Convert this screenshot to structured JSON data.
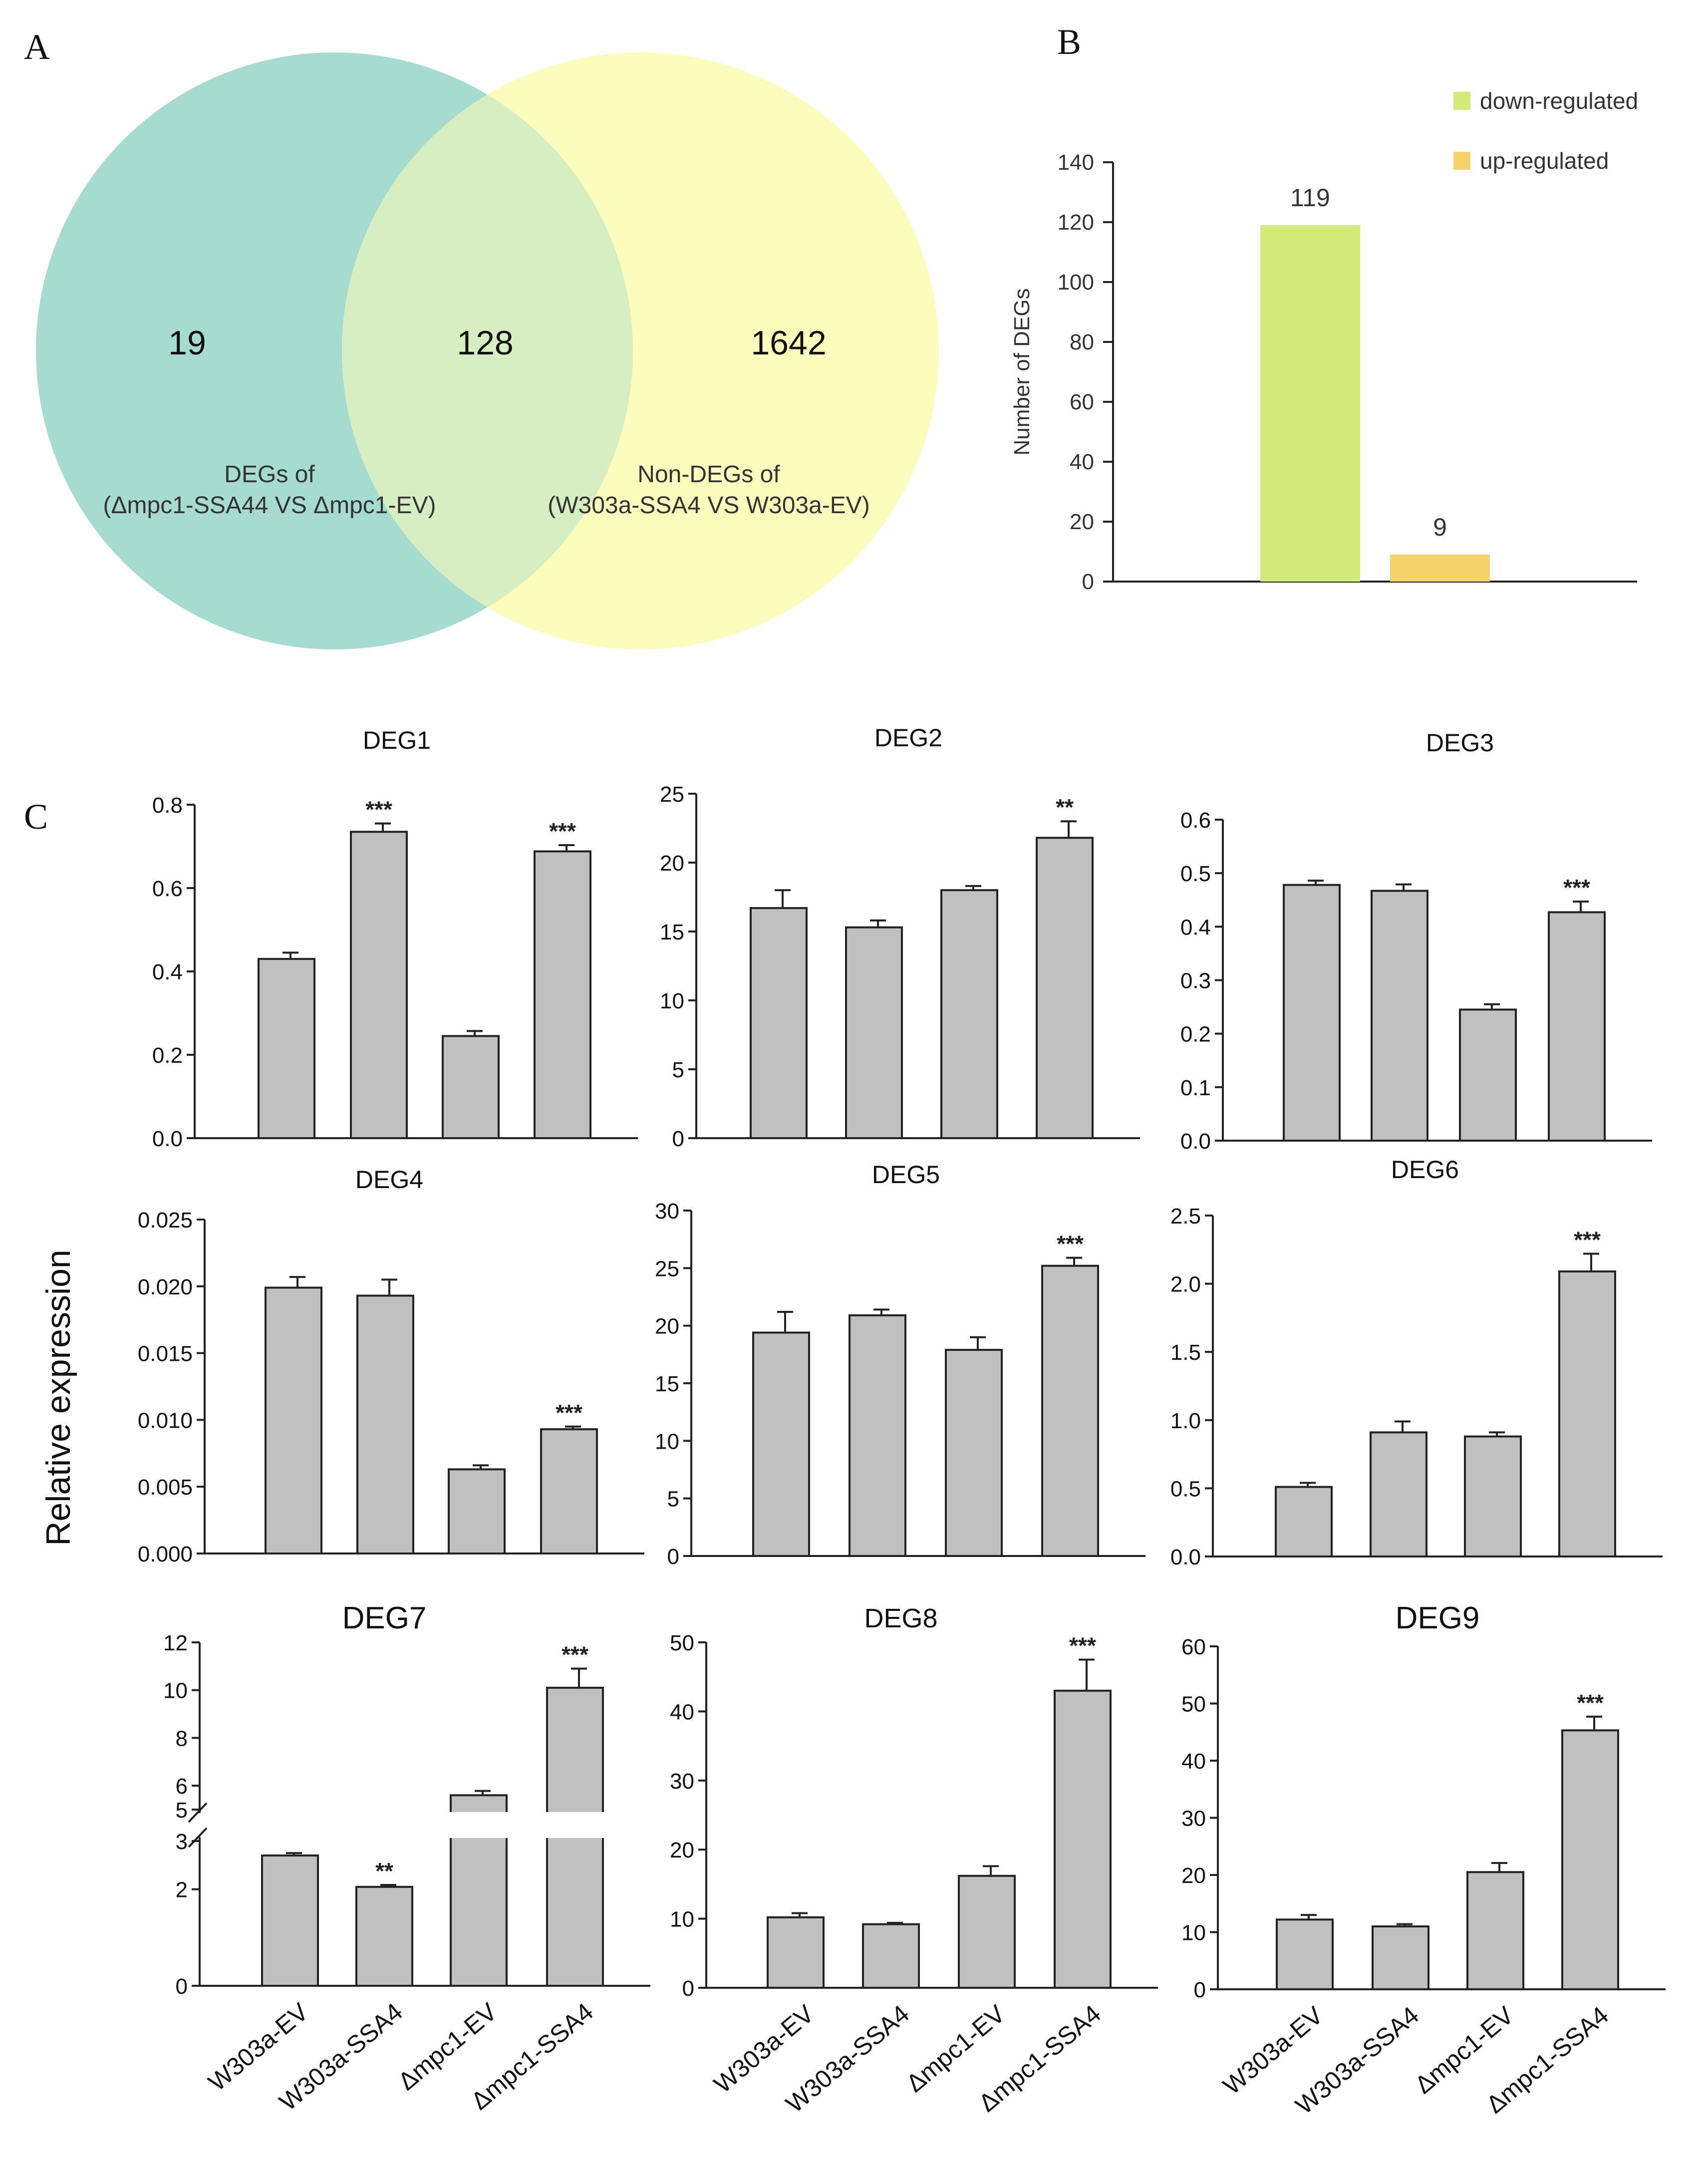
{
  "panel_labels": {
    "a": "A",
    "b": "B",
    "c": "C"
  },
  "venn": {
    "left_only": "19",
    "overlap": "128",
    "right_only": "1642",
    "left_label_line1": "DEGs of",
    "left_label_line2": "(Δmpc1-SSA44 VS Δmpc1-EV)",
    "right_label_line1": "Non-DEGs of",
    "right_label_line2": "(W303a-SSA4 VS W303a-EV)",
    "left_color": "#a6dccf",
    "right_color": "#fcfcbd",
    "overlap_color": "#d6eec1"
  },
  "shared_ylabel": "Relative  expression",
  "chart_data": [
    {
      "id": "b",
      "type": "bar",
      "ylabel": "Number of DEGs",
      "ylim": [
        0,
        140
      ],
      "yticks": [
        0,
        20,
        40,
        60,
        80,
        100,
        120,
        140
      ],
      "legend_position": "top-right",
      "series": [
        {
          "name": "down-regulated",
          "value": 119,
          "color": "#d3ea7b"
        },
        {
          "name": "up-regulated",
          "value": 9,
          "color": "#f5d36a"
        }
      ]
    },
    {
      "id": "deg1",
      "type": "bar",
      "title": "DEG1",
      "categories": [
        "W303a-EV",
        "W303a-SSA4",
        "Δmpc1-EV",
        "Δmpc1-SSA4"
      ],
      "values": [
        0.43,
        0.735,
        0.245,
        0.688
      ],
      "errors": [
        0.015,
        0.02,
        0.012,
        0.015
      ],
      "significance": [
        "",
        "***",
        "",
        "***"
      ],
      "ylim": [
        0,
        0.8
      ],
      "yticks": [
        "0.0",
        "0.2",
        "0.4",
        "0.6",
        "0.8"
      ]
    },
    {
      "id": "deg2",
      "type": "bar",
      "title": "DEG2",
      "categories": [
        "W303a-EV",
        "W303a-SSA4",
        "Δmpc1-EV",
        "Δmpc1-SSA4"
      ],
      "values": [
        16.7,
        15.3,
        18.0,
        21.8
      ],
      "errors": [
        1.3,
        0.5,
        0.3,
        1.2
      ],
      "significance": [
        "",
        "",
        "",
        "**"
      ],
      "ylim": [
        0,
        25
      ],
      "yticks": [
        "0",
        "5",
        "10",
        "15",
        "20",
        "25"
      ]
    },
    {
      "id": "deg3",
      "type": "bar",
      "title": "DEG3",
      "categories": [
        "W303a-EV",
        "W303a-SSA4",
        "Δmpc1-EV",
        "Δmpc1-SSA4"
      ],
      "values": [
        0.478,
        0.467,
        0.245,
        0.427
      ],
      "errors": [
        0.008,
        0.012,
        0.01,
        0.02
      ],
      "significance": [
        "",
        "",
        "",
        "***"
      ],
      "ylim": [
        0,
        0.6
      ],
      "yticks": [
        "0.0",
        "0.1",
        "0.2",
        "0.3",
        "0.4",
        "0.5",
        "0.6"
      ]
    },
    {
      "id": "deg4",
      "type": "bar",
      "title": "DEG4",
      "categories": [
        "W303a-EV",
        "W303a-SSA4",
        "Δmpc1-EV",
        "Δmpc1-SSA4"
      ],
      "values": [
        0.0199,
        0.0193,
        0.0063,
        0.0093
      ],
      "errors": [
        0.0008,
        0.0012,
        0.0003,
        0.0002
      ],
      "significance": [
        "",
        "",
        "",
        "***"
      ],
      "ylim": [
        0,
        0.025
      ],
      "yticks": [
        "0.000",
        "0.005",
        "0.010",
        "0.015",
        "0.020",
        "0.025"
      ]
    },
    {
      "id": "deg5",
      "type": "bar",
      "title": "DEG5",
      "categories": [
        "W303a-EV",
        "W303a-SSA4",
        "Δmpc1-EV",
        "Δmpc1-SSA4"
      ],
      "values": [
        19.4,
        20.9,
        17.9,
        25.2
      ],
      "errors": [
        1.8,
        0.5,
        1.1,
        0.7
      ],
      "significance": [
        "",
        "",
        "",
        "***"
      ],
      "ylim": [
        0,
        30
      ],
      "yticks": [
        "0",
        "5",
        "10",
        "15",
        "20",
        "25",
        "30"
      ]
    },
    {
      "id": "deg6",
      "type": "bar",
      "title": "DEG6",
      "categories": [
        "W303a-EV",
        "W303a-SSA4",
        "Δmpc1-EV",
        "Δmpc1-SSA4"
      ],
      "values": [
        0.51,
        0.91,
        0.88,
        2.09
      ],
      "errors": [
        0.03,
        0.08,
        0.03,
        0.13
      ],
      "significance": [
        "",
        "",
        "",
        "***"
      ],
      "ylim": [
        0,
        2.5
      ],
      "yticks": [
        "0.0",
        "0.5",
        "1.0",
        "1.5",
        "2.0",
        "2.5"
      ]
    },
    {
      "id": "deg7",
      "type": "bar",
      "title": "DEG7",
      "categories": [
        "W303a-EV",
        "W303a-SSA4",
        "Δmpc1-EV",
        "Δmpc1-SSA4"
      ],
      "values": [
        2.7,
        2.05,
        5.6,
        10.1
      ],
      "errors": [
        0.05,
        0.04,
        0.18,
        0.8
      ],
      "significance": [
        "",
        "**",
        "",
        "***"
      ],
      "axis_break": [
        3,
        5
      ],
      "ylim": [
        0,
        12
      ],
      "yticks": [
        "0",
        "2",
        "3",
        "5",
        "6",
        "8",
        "10",
        "12"
      ]
    },
    {
      "id": "deg8",
      "type": "bar",
      "title": "DEG8",
      "categories": [
        "W303a-EV",
        "W303a-SSA4",
        "Δmpc1-EV",
        "Δmpc1-SSA4"
      ],
      "values": [
        10.2,
        9.2,
        16.2,
        43.0
      ],
      "errors": [
        0.6,
        0.2,
        1.4,
        4.5
      ],
      "significance": [
        "",
        "",
        "",
        "***"
      ],
      "ylim": [
        0,
        50
      ],
      "yticks": [
        "0",
        "10",
        "20",
        "30",
        "40",
        "50"
      ]
    },
    {
      "id": "deg9",
      "type": "bar",
      "title": "DEG9",
      "categories": [
        "W303a-EV",
        "W303a-SSA4",
        "Δmpc1-EV",
        "Δmpc1-SSA4"
      ],
      "values": [
        12.2,
        11.0,
        20.5,
        45.3
      ],
      "errors": [
        0.8,
        0.4,
        1.6,
        2.4
      ],
      "significance": [
        "",
        "",
        "",
        "***"
      ],
      "ylim": [
        0,
        60
      ],
      "yticks": [
        "0",
        "10",
        "20",
        "30",
        "40",
        "50",
        "60"
      ]
    }
  ]
}
